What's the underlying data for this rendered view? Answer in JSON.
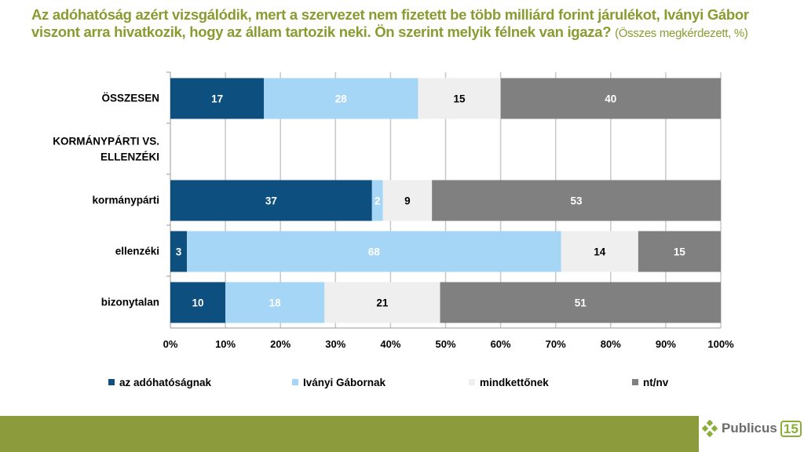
{
  "title": {
    "main": "Az adóhatóság azért vizsgálódik, mert a szervezet nem fizetett be több milliárd forint járulékot, Iványi Gábor viszont arra hivatkozik, hogy az állam tartozik neki. Ön szerint melyik félnek van igaza?",
    "sub": "(Összes megkérdezett, %)"
  },
  "logo": {
    "text": "Publicus",
    "number": "15"
  },
  "chart_data": {
    "type": "bar",
    "orientation": "horizontal",
    "stacked": "percent",
    "categories": [
      "ÖSSZESEN",
      "KORMÁNYPÁRTI VS. ELLENZÉKI",
      "kormánypárti",
      "ellenzéki",
      "bizonytalan"
    ],
    "category_bold": [
      true,
      true,
      true,
      true,
      true
    ],
    "series": [
      {
        "name": "az adóhatóságnak",
        "color": "#0d4f7e",
        "label_color": "#ffffff",
        "values": [
          17,
          null,
          37,
          3,
          10
        ]
      },
      {
        "name": "Iványi Gábornak",
        "color": "#a6d6f5",
        "label_color": "#ffffff",
        "values": [
          28,
          null,
          2,
          68,
          18
        ]
      },
      {
        "name": "mindkettőnek",
        "color": "#efefef",
        "label_color": "#000000",
        "values": [
          15,
          null,
          9,
          14,
          21
        ]
      },
      {
        "name": "nt/nv",
        "color": "#808080",
        "label_color": "#ffffff",
        "values": [
          40,
          null,
          53,
          15,
          51
        ]
      }
    ],
    "xticks": [
      "0%",
      "10%",
      "20%",
      "30%",
      "40%",
      "50%",
      "60%",
      "70%",
      "80%",
      "90%",
      "100%"
    ],
    "xlim": [
      0,
      100
    ],
    "grid": true,
    "legend": "bottom"
  }
}
